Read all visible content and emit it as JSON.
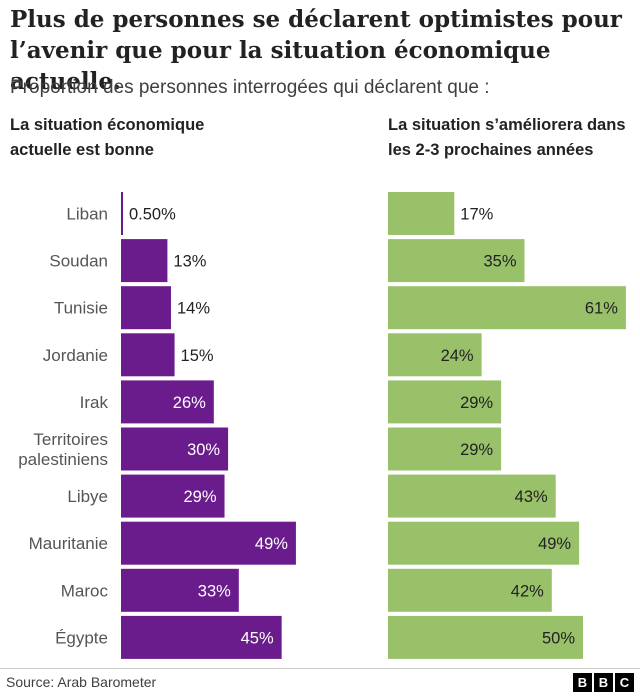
{
  "title": "Plus de personnes se déclarent optimistes pour l’avenir que pour la situation économique actuelle.",
  "subtitle": "Proportion des personnes interrogées qui déclarent que :",
  "left_panel_title": "La situation économique actuelle est bonne",
  "right_panel_title": "La situation s’améliorera dans les 2-3 prochaines années",
  "source": "Source: Arab Barometer",
  "logo": [
    "B",
    "B",
    "C"
  ],
  "colors": {
    "left_bar": "#6a1c8c",
    "right_bar": "#98c16a",
    "label_inside": "#ffffff",
    "label_outside": "#222222",
    "category_text": "#555555"
  },
  "chart_data": [
    {
      "type": "bar",
      "orientation": "horizontal",
      "title": "La situation économique actuelle est bonne",
      "categories": [
        "Liban",
        "Soudan",
        "Tunisie",
        "Jordanie",
        "Irak",
        "Territoires palestiniens",
        "Libye",
        "Mauritanie",
        "Maroc",
        "Égypte"
      ],
      "category_lines": [
        [
          "Liban"
        ],
        [
          "Soudan"
        ],
        [
          "Tunisie"
        ],
        [
          "Jordanie"
        ],
        [
          "Irak"
        ],
        [
          "Territoires",
          "palestiniens"
        ],
        [
          "Libye"
        ],
        [
          "Mauritanie"
        ],
        [
          "Maroc"
        ],
        [
          "Égypte"
        ]
      ],
      "values": [
        0.5,
        13,
        14,
        15,
        26,
        30,
        29,
        49,
        33,
        45
      ],
      "value_labels": [
        "0.50%",
        "13%",
        "14%",
        "15%",
        "26%",
        "30%",
        "29%",
        "49%",
        "33%",
        "45%"
      ],
      "unit": "%",
      "color": "#6a1c8c",
      "grid": false
    },
    {
      "type": "bar",
      "orientation": "horizontal",
      "title": "La situation s’améliorera dans les 2-3 prochaines années",
      "categories": [
        "Liban",
        "Soudan",
        "Tunisie",
        "Jordanie",
        "Irak",
        "Territoires palestiniens",
        "Libye",
        "Mauritanie",
        "Maroc",
        "Égypte"
      ],
      "values": [
        17,
        35,
        61,
        24,
        29,
        29,
        43,
        49,
        42,
        50
      ],
      "value_labels": [
        "17%",
        "35%",
        "61%",
        "24%",
        "29%",
        "29%",
        "43%",
        "49%",
        "42%",
        "50%"
      ],
      "unit": "%",
      "color": "#98c16a",
      "grid": false
    }
  ]
}
